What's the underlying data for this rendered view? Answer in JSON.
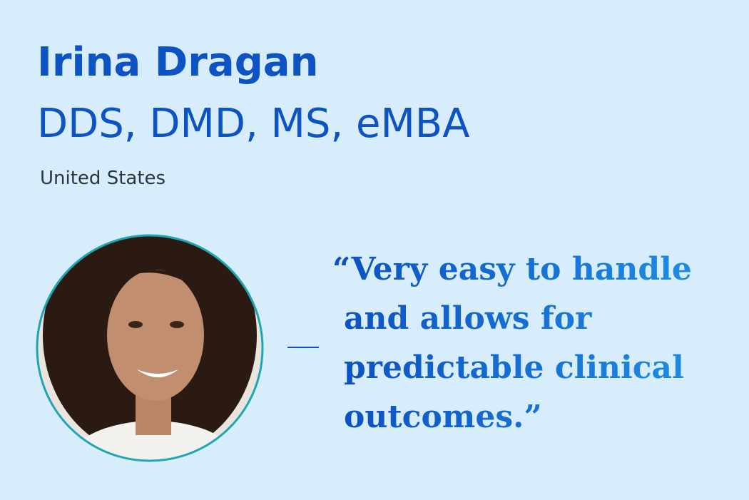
{
  "profile": {
    "name": "Irina Dragan",
    "credentials": "DDS, DMD, MS, eMBA",
    "location": "United States"
  },
  "quote": {
    "lines": [
      "“Very easy to handle",
      "and allows for",
      "predictable clinical",
      "outcomes.”"
    ]
  }
}
